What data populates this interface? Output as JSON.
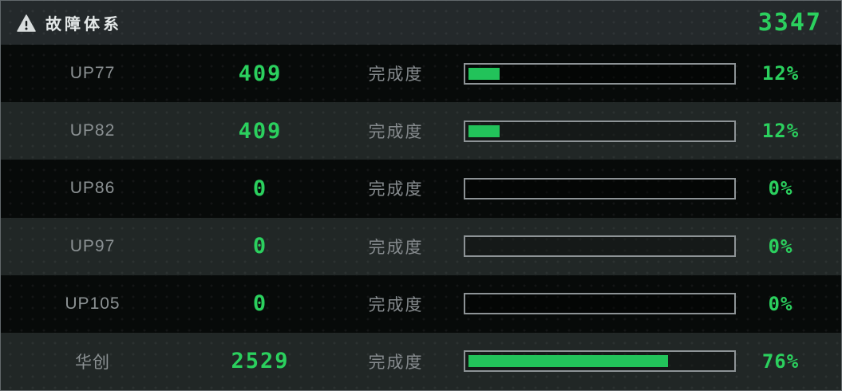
{
  "header": {
    "icon": "warning-icon",
    "title": "故障体系",
    "total": "3347"
  },
  "columns": {
    "progress_label": "完成度"
  },
  "colors": {
    "accent_green": "#2bd05e",
    "bar_fill_green": "#22c35a",
    "label_gray": "#8b9193",
    "row_dark": "#070a09",
    "row_light": "#212726",
    "header_bg": "#24292b",
    "bar_border": "#8d9396",
    "panel_border": "#62686b"
  },
  "rows": [
    {
      "name": "UP77",
      "value": "409",
      "progress_label": "完成度",
      "percent": 12,
      "percent_label": "12%"
    },
    {
      "name": "UP82",
      "value": "409",
      "progress_label": "完成度",
      "percent": 12,
      "percent_label": "12%"
    },
    {
      "name": "UP86",
      "value": "0",
      "progress_label": "完成度",
      "percent": 0,
      "percent_label": "0%"
    },
    {
      "name": "UP97",
      "value": "0",
      "progress_label": "完成度",
      "percent": 0,
      "percent_label": "0%"
    },
    {
      "name": "UP105",
      "value": "0",
      "progress_label": "完成度",
      "percent": 0,
      "percent_label": "0%"
    },
    {
      "name": "华创",
      "value": "2529",
      "progress_label": "完成度",
      "percent": 76,
      "percent_label": "76%"
    }
  ]
}
